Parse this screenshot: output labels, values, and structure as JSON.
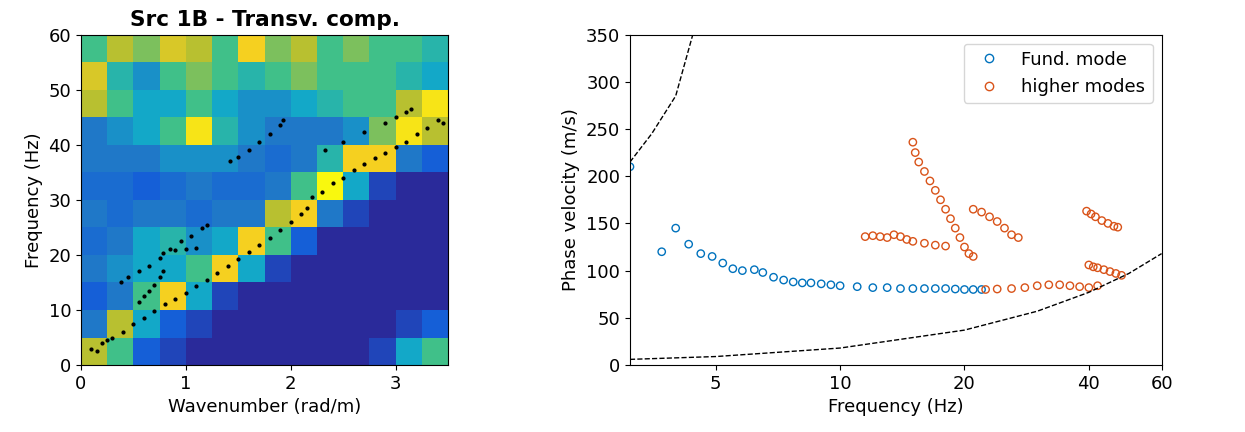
{
  "chart_data": [
    {
      "type": "heatmap",
      "title": "Src 1B - Transv. comp.",
      "x_label": "Wavenumber (rad/m)",
      "y_label": "Frequency (Hz)",
      "xlim": [
        0,
        3.5
      ],
      "xticks": [
        0,
        1,
        2,
        3
      ],
      "ylim": [
        0,
        60
      ],
      "yticks": [
        0,
        10,
        20,
        30,
        40,
        50,
        60
      ],
      "k_edges": [
        0,
        0.25,
        0.5,
        0.75,
        1.0,
        1.25,
        1.5,
        1.75,
        2.0,
        2.25,
        2.5,
        2.75,
        3.0,
        3.25,
        3.5
      ],
      "f_edges": [
        0,
        5,
        10,
        15,
        20,
        25,
        30,
        35,
        40,
        45,
        50,
        55,
        60
      ],
      "cells": [
        [
          0.6,
          0.5,
          0.2,
          0.15,
          0.1,
          0.1,
          0.1,
          0.1,
          0.1,
          0.1,
          0.1,
          0.15,
          0.4,
          0.5
        ],
        [
          0.3,
          0.6,
          0.4,
          0.2,
          0.15,
          0.1,
          0.1,
          0.1,
          0.1,
          0.1,
          0.1,
          0.1,
          0.15,
          0.2
        ],
        [
          0.2,
          0.3,
          0.5,
          0.7,
          0.4,
          0.15,
          0.1,
          0.1,
          0.1,
          0.1,
          0.1,
          0.1,
          0.1,
          0.1
        ],
        [
          0.3,
          0.35,
          0.4,
          0.4,
          0.5,
          0.7,
          0.4,
          0.15,
          0.1,
          0.1,
          0.1,
          0.1,
          0.1,
          0.1
        ],
        [
          0.25,
          0.3,
          0.4,
          0.45,
          0.35,
          0.4,
          0.7,
          0.5,
          0.2,
          0.1,
          0.1,
          0.1,
          0.1,
          0.1
        ],
        [
          0.3,
          0.25,
          0.3,
          0.3,
          0.25,
          0.3,
          0.3,
          0.6,
          0.7,
          0.3,
          0.15,
          0.1,
          0.1,
          0.1
        ],
        [
          0.25,
          0.25,
          0.2,
          0.25,
          0.3,
          0.25,
          0.25,
          0.3,
          0.5,
          0.8,
          0.4,
          0.15,
          0.1,
          0.1
        ],
        [
          0.3,
          0.3,
          0.3,
          0.35,
          0.35,
          0.35,
          0.3,
          0.25,
          0.3,
          0.45,
          0.7,
          0.7,
          0.3,
          0.2
        ],
        [
          0.3,
          0.35,
          0.4,
          0.5,
          0.75,
          0.45,
          0.35,
          0.3,
          0.3,
          0.3,
          0.35,
          0.55,
          0.75,
          0.6
        ],
        [
          0.6,
          0.5,
          0.4,
          0.4,
          0.5,
          0.4,
          0.35,
          0.35,
          0.4,
          0.45,
          0.5,
          0.5,
          0.6,
          0.75
        ],
        [
          0.65,
          0.45,
          0.35,
          0.5,
          0.55,
          0.5,
          0.45,
          0.5,
          0.55,
          0.5,
          0.5,
          0.5,
          0.45,
          0.4
        ],
        [
          0.5,
          0.6,
          0.55,
          0.65,
          0.6,
          0.5,
          0.7,
          0.55,
          0.6,
          0.5,
          0.55,
          0.5,
          0.5,
          0.45
        ]
      ],
      "picks": {
        "color": "#000000",
        "marker": "dot",
        "x": [
          0.1,
          0.15,
          0.2,
          0.25,
          0.3,
          0.4,
          0.5,
          0.6,
          0.7,
          0.8,
          0.9,
          1.0,
          1.1,
          1.2,
          1.3,
          1.4,
          1.5,
          1.6,
          1.7,
          1.8,
          1.9,
          2.0,
          2.1,
          2.15,
          2.2,
          2.3,
          2.4,
          2.5,
          2.6,
          2.7,
          2.8,
          2.9,
          3.0,
          3.1,
          3.2,
          3.3,
          3.4,
          3.45,
          0.38,
          0.45,
          0.55,
          0.65,
          0.75,
          0.85,
          0.95,
          1.05,
          1.15,
          1.2,
          0.55,
          0.6,
          0.65,
          0.7,
          0.75,
          0.78,
          0.78,
          0.9,
          1.0,
          1.1,
          1.42,
          1.5,
          1.6,
          1.7,
          1.8,
          1.9,
          1.93,
          2.33,
          2.5,
          2.7,
          2.9,
          3.0,
          3.1,
          3.15
        ],
        "y": [
          3,
          2.5,
          4,
          4.5,
          5,
          6,
          7.5,
          8.5,
          9.8,
          11,
          12,
          13,
          14.3,
          15.5,
          16.8,
          18,
          19.3,
          20.5,
          21.8,
          23,
          24.5,
          26,
          27.5,
          28.5,
          30.5,
          31.5,
          33,
          34,
          35.5,
          36.5,
          37.5,
          38.5,
          39.5,
          40.5,
          42,
          43,
          44.5,
          44,
          15,
          16,
          17,
          18,
          19.5,
          21,
          22.5,
          23.5,
          24.8,
          25.5,
          11.5,
          12.5,
          13.5,
          14.5,
          16,
          17,
          20.3,
          20.8,
          21,
          21.2,
          37,
          37.8,
          39,
          40.5,
          42,
          43.5,
          44.5,
          39,
          40.5,
          42.3,
          44,
          45,
          46,
          46.5
        ]
      }
    },
    {
      "type": "scatter",
      "x_label": "Frequency (Hz)",
      "y_label": "Phase velocity (m/s)",
      "log": "x",
      "xlim": [
        3.1,
        60
      ],
      "xticks": [
        5,
        10,
        20,
        40,
        60
      ],
      "ylim": [
        0,
        350
      ],
      "yticks": [
        0,
        50,
        100,
        150,
        200,
        250,
        300,
        350
      ],
      "legend": "upper right",
      "series": [
        {
          "name": "Fund. mode",
          "color": "#0072BD",
          "marker": "circle",
          "x": [
            3.1,
            3.7,
            4.0,
            4.3,
            4.6,
            4.9,
            5.2,
            5.5,
            5.8,
            6.2,
            6.5,
            6.9,
            7.3,
            7.7,
            8.1,
            8.5,
            9,
            9.5,
            10,
            11,
            12,
            13,
            14,
            15,
            16,
            17,
            18,
            19,
            20,
            21,
            22
          ],
          "values": [
            210,
            120,
            145,
            128,
            118,
            115,
            108,
            102,
            100,
            101,
            98,
            93,
            90,
            88,
            87,
            87,
            86,
            85,
            84,
            83,
            82,
            82,
            81,
            81,
            81,
            81,
            81,
            80.5,
            80,
            80,
            80
          ]
        },
        {
          "name": "higher modes",
          "color": "#D95319",
          "marker": "circle",
          "x": [
            22.5,
            24,
            26,
            28,
            30,
            32,
            34,
            36,
            38,
            40,
            42,
            11.5,
            12,
            12.5,
            13,
            13.5,
            14,
            14.5,
            15,
            16,
            17,
            18,
            15,
            15.2,
            15.5,
            16,
            16.5,
            17,
            17.5,
            18,
            18.5,
            19,
            19.5,
            20,
            20.5,
            21,
            21,
            22,
            23,
            24,
            25,
            26,
            27,
            39.5,
            40.5,
            41.5,
            43,
            44.5,
            46,
            47,
            40,
            41,
            42,
            43.5,
            45,
            46.5,
            48
          ],
          "values": [
            80,
            80.5,
            81,
            82,
            84,
            85,
            85,
            84,
            83,
            82,
            84,
            136,
            137,
            136,
            135,
            138,
            136,
            133,
            131,
            129,
            127,
            126,
            236,
            225,
            215,
            205,
            195,
            185,
            175,
            165,
            155,
            145,
            135,
            125,
            118,
            115,
            165,
            162,
            157,
            152,
            145,
            138,
            135,
            163,
            160,
            157,
            153,
            150,
            147,
            146,
            106,
            104,
            103,
            101,
            99,
            97,
            95
          ]
        }
      ],
      "reference_lines": [
        {
          "color": "#000000",
          "line_style": "dashed",
          "x": [
            3.1,
            5,
            10,
            20,
            30,
            40,
            50,
            60
          ],
          "values": [
            6,
            9,
            18,
            37,
            57,
            77,
            97,
            118
          ]
        },
        {
          "color": "#000000",
          "line_style": "dashed",
          "x": [
            3.1,
            3.5,
            4,
            4.4
          ],
          "values": [
            215,
            245,
            285,
            350
          ]
        }
      ]
    }
  ]
}
